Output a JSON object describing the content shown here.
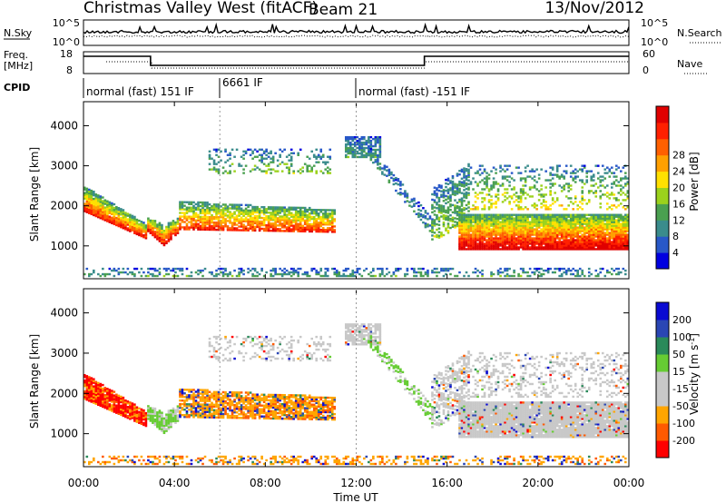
{
  "header": {
    "title": "Christmas Valley West (fitACF)",
    "beam": "Beam 21",
    "date": "13/Nov/2012"
  },
  "nsky_panel": {
    "left_label": "N.Sky",
    "left_ticks": [
      "10^5",
      "10^0"
    ],
    "right_ticks": [
      "10^5",
      "10^0"
    ],
    "right_label": "N.Search"
  },
  "freq_panel": {
    "left_label_line1": "Freq.",
    "left_label_line2": "[MHz]",
    "left_ticks": [
      "18",
      "8"
    ],
    "right_ticks": [
      "60",
      "0"
    ],
    "right_label": "Nave"
  },
  "cpid_panel": {
    "label": "CPID",
    "segments": [
      {
        "text": "normal (fast) 151 IF",
        "start_hour": 0
      },
      {
        "text": "6661 IF",
        "start_hour": 6
      },
      {
        "text": "normal (fast) -151 IF",
        "start_hour": 12
      }
    ]
  },
  "colors": {
    "power_scale": [
      "#0000e0",
      "#2858c8",
      "#3a8c8c",
      "#4aa050",
      "#9bd21c",
      "#ffe000",
      "#ffa000",
      "#ff6000",
      "#ff2000",
      "#e00000"
    ],
    "velocity_scale": [
      "#ff0000",
      "#ff5a00",
      "#ffa500",
      "#c8c8c8",
      "#c8c8c8",
      "#66cc33",
      "#2a8a5a",
      "#2a46b4",
      "#0a0ad2"
    ]
  },
  "chart_data": [
    {
      "type": "heatmap",
      "panel": "power",
      "ylabel": "Slant Range [km]",
      "yticks": [
        1000,
        2000,
        3000,
        4000
      ],
      "ylim": [
        180,
        4600
      ],
      "colorbar_label": "Power [dB]",
      "colorbar_ticks": [
        "4",
        "8",
        "12",
        "16",
        "20",
        "24",
        "28"
      ],
      "colorbar_range": [
        0,
        32
      ]
    },
    {
      "type": "heatmap",
      "panel": "velocity",
      "ylabel": "Slant Range [km]",
      "yticks": [
        1000,
        2000,
        3000,
        4000
      ],
      "ylim": [
        180,
        4600
      ],
      "colorbar_label_main": "Velocity [m s",
      "colorbar_label_sup": "-1",
      "colorbar_label_end": "]",
      "colorbar_ticks": [
        "-200",
        "-100",
        "-50",
        "-15",
        "15",
        "50",
        "100",
        "200"
      ]
    }
  ],
  "xaxis": {
    "label": "Time UT",
    "ticks": [
      "00:00",
      "04:00",
      "08:00",
      "12:00",
      "16:00",
      "20:00",
      "00:00"
    ],
    "range_hours": [
      0,
      24
    ]
  }
}
